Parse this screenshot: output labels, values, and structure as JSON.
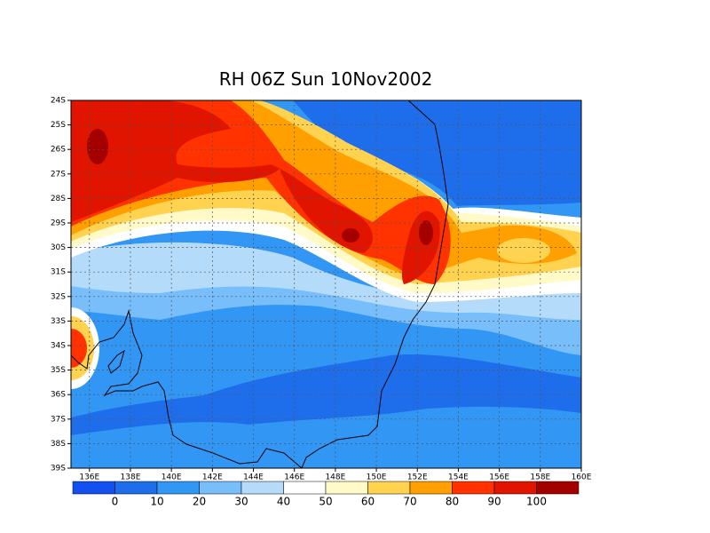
{
  "map": {
    "title": "RH 06Z Sun 10Nov2002",
    "xlim": [
      135.1,
      160
    ],
    "ylim": [
      -24,
      -39
    ],
    "xticks": [
      {
        "value": 136,
        "label": "136E"
      },
      {
        "value": 138,
        "label": "138E"
      },
      {
        "value": 140,
        "label": "140E"
      },
      {
        "value": 142,
        "label": "142E"
      },
      {
        "value": 144,
        "label": "144E"
      },
      {
        "value": 146,
        "label": "146E"
      },
      {
        "value": 148,
        "label": "148E"
      },
      {
        "value": 150,
        "label": "150E"
      },
      {
        "value": 152,
        "label": "152E"
      },
      {
        "value": 154,
        "label": "154E"
      },
      {
        "value": 156,
        "label": "156E"
      },
      {
        "value": 158,
        "label": "158E"
      },
      {
        "value": 160,
        "label": "160E"
      }
    ],
    "yticks": [
      {
        "value": -24,
        "label": "24S"
      },
      {
        "value": -25,
        "label": "25S"
      },
      {
        "value": -26,
        "label": "26S"
      },
      {
        "value": -27,
        "label": "27S"
      },
      {
        "value": -28,
        "label": "28S"
      },
      {
        "value": -29,
        "label": "29S"
      },
      {
        "value": -30,
        "label": "30S"
      },
      {
        "value": -31,
        "label": "31S"
      },
      {
        "value": -32,
        "label": "32S"
      },
      {
        "value": -33,
        "label": "33S"
      },
      {
        "value": -34,
        "label": "34S"
      },
      {
        "value": -35,
        "label": "35S"
      },
      {
        "value": -36,
        "label": "36S"
      },
      {
        "value": -37,
        "label": "37S"
      },
      {
        "value": -38,
        "label": "38S"
      },
      {
        "value": -39,
        "label": "39S"
      }
    ],
    "grid": true,
    "colorbar": {
      "levels": [
        0,
        10,
        20,
        30,
        40,
        50,
        60,
        70,
        80,
        90,
        100
      ],
      "colors": [
        "#1450f0",
        "#1e6eeb",
        "#3296f5",
        "#78befa",
        "#b4dcfa",
        "#ffffff",
        "#fffac8",
        "#ffd250",
        "#ffa000",
        "#ff3200",
        "#e11400",
        "#a50000"
      ]
    }
  }
}
